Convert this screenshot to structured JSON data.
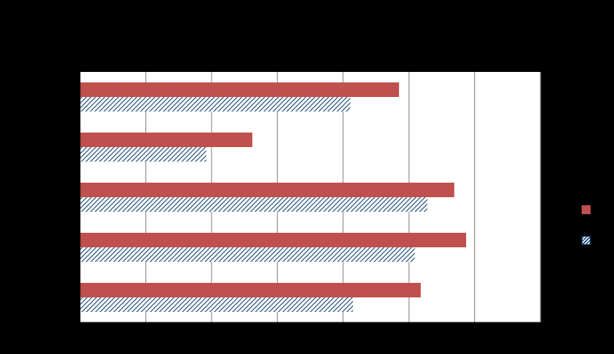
{
  "chart_data": {
    "type": "bar",
    "orientation": "horizontal",
    "title": "",
    "xlabel": "",
    "ylabel": "",
    "categories": [
      "",
      "",
      "",
      "",
      ""
    ],
    "series": [
      {
        "values": [
          48.5,
          26.2,
          56.9,
          58.7,
          51.8
        ],
        "color": "#C0504D",
        "pattern": "solid"
      },
      {
        "values": [
          41.1,
          19.2,
          52.8,
          50.9,
          41.5
        ],
        "color": "#1F4E79",
        "pattern": "diagonal-hatch"
      }
    ],
    "xlim": [
      0,
      70
    ],
    "x_gridlines": [
      0,
      10,
      20,
      30,
      40,
      50,
      60,
      70
    ],
    "grid": true,
    "legend": "right",
    "plot_background": "#FFFFFF",
    "figure_background": "#000000"
  }
}
